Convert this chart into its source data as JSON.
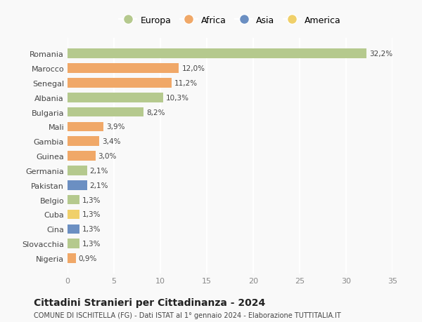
{
  "categories": [
    "Nigeria",
    "Slovacchia",
    "Cina",
    "Cuba",
    "Belgio",
    "Pakistan",
    "Germania",
    "Guinea",
    "Gambia",
    "Mali",
    "Bulgaria",
    "Albania",
    "Senegal",
    "Marocco",
    "Romania"
  ],
  "values": [
    0.9,
    1.3,
    1.3,
    1.3,
    1.3,
    2.1,
    2.1,
    3.0,
    3.4,
    3.9,
    8.2,
    10.3,
    11.2,
    12.0,
    32.2
  ],
  "labels": [
    "0,9%",
    "1,3%",
    "1,3%",
    "1,3%",
    "1,3%",
    "2,1%",
    "2,1%",
    "3,0%",
    "3,4%",
    "3,9%",
    "8,2%",
    "10,3%",
    "11,2%",
    "12,0%",
    "32,2%"
  ],
  "continent": [
    "Africa",
    "Europa",
    "Asia",
    "America",
    "Europa",
    "Asia",
    "Europa",
    "Africa",
    "Africa",
    "Africa",
    "Europa",
    "Europa",
    "Africa",
    "Africa",
    "Europa"
  ],
  "continent_colors": {
    "Europa": "#b5c98e",
    "Africa": "#f0a868",
    "Asia": "#6b8fc2",
    "America": "#f0d06a"
  },
  "legend_order": [
    "Europa",
    "Africa",
    "Asia",
    "America"
  ],
  "title": "Cittadini Stranieri per Cittadinanza - 2024",
  "subtitle": "COMUNE DI ISCHITELLA (FG) - Dati ISTAT al 1° gennaio 2024 - Elaborazione TUTTITALIA.IT",
  "xlim": [
    0,
    35
  ],
  "xticks": [
    0,
    5,
    10,
    15,
    20,
    25,
    30,
    35
  ],
  "background_color": "#f9f9f9",
  "grid_color": "#ffffff",
  "bar_height": 0.65
}
